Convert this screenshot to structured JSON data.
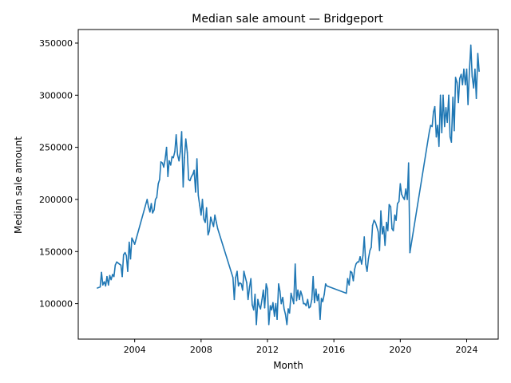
{
  "chart_data": {
    "type": "line",
    "title": "Median sale amount — Bridgeport",
    "xlabel": "Month",
    "ylabel": "Median sale amount",
    "xlim": [
      2000.6,
      2025.9
    ],
    "ylim": [
      66000,
      363000
    ],
    "x_ticks": [
      {
        "value": 2004,
        "label": "2004"
      },
      {
        "value": 2008,
        "label": "2008"
      },
      {
        "value": 2012,
        "label": "2012"
      },
      {
        "value": 2016,
        "label": "2016"
      },
      {
        "value": 2020,
        "label": "2020"
      },
      {
        "value": 2024,
        "label": "2024"
      }
    ],
    "y_ticks": [
      {
        "value": 100000,
        "label": "100000"
      },
      {
        "value": 150000,
        "label": "150000"
      },
      {
        "value": 200000,
        "label": "200000"
      },
      {
        "value": 250000,
        "label": "250000"
      },
      {
        "value": 300000,
        "label": "300000"
      },
      {
        "value": 350000,
        "label": "350000"
      }
    ],
    "grid": false,
    "series": [
      {
        "color": "#1f77b4",
        "points": [
          [
            2001.75,
            115000
          ],
          [
            2001.92,
            116000
          ],
          [
            2002.0,
            130000
          ],
          [
            2002.08,
            118000
          ],
          [
            2002.17,
            121000
          ],
          [
            2002.25,
            117000
          ],
          [
            2002.33,
            126000
          ],
          [
            2002.42,
            118000
          ],
          [
            2002.5,
            127000
          ],
          [
            2002.58,
            123000
          ],
          [
            2002.67,
            128000
          ],
          [
            2002.75,
            126000
          ],
          [
            2002.83,
            137000
          ],
          [
            2002.92,
            140000
          ],
          [
            2003.0,
            139000
          ],
          [
            2003.08,
            138000
          ],
          [
            2003.17,
            137000
          ],
          [
            2003.25,
            126000
          ],
          [
            2003.33,
            147000
          ],
          [
            2003.42,
            149000
          ],
          [
            2003.5,
            146000
          ],
          [
            2003.58,
            131000
          ],
          [
            2003.67,
            159000
          ],
          [
            2003.75,
            143000
          ],
          [
            2003.83,
            163000
          ],
          [
            2003.92,
            160000
          ],
          [
            2004.0,
            157000
          ],
          [
            2004.75,
            200000
          ],
          [
            2004.83,
            193000
          ],
          [
            2004.92,
            188000
          ],
          [
            2005.0,
            196000
          ],
          [
            2005.08,
            187000
          ],
          [
            2005.17,
            190000
          ],
          [
            2005.25,
            200000
          ],
          [
            2005.33,
            202000
          ],
          [
            2005.42,
            215000
          ],
          [
            2005.5,
            219000
          ],
          [
            2005.58,
            236000
          ],
          [
            2005.67,
            235000
          ],
          [
            2005.75,
            231000
          ],
          [
            2005.83,
            238000
          ],
          [
            2005.92,
            250000
          ],
          [
            2006.0,
            222000
          ],
          [
            2006.08,
            237000
          ],
          [
            2006.17,
            233000
          ],
          [
            2006.25,
            241000
          ],
          [
            2006.33,
            240000
          ],
          [
            2006.42,
            246000
          ],
          [
            2006.5,
            262000
          ],
          [
            2006.58,
            243000
          ],
          [
            2006.67,
            237000
          ],
          [
            2006.75,
            246000
          ],
          [
            2006.83,
            265000
          ],
          [
            2006.92,
            212000
          ],
          [
            2007.0,
            240000
          ],
          [
            2007.08,
            258000
          ],
          [
            2007.17,
            245000
          ],
          [
            2007.25,
            219000
          ],
          [
            2007.33,
            218000
          ],
          [
            2007.42,
            222000
          ],
          [
            2007.5,
            224000
          ],
          [
            2007.58,
            228000
          ],
          [
            2007.67,
            207000
          ],
          [
            2007.75,
            239000
          ],
          [
            2007.83,
            204000
          ],
          [
            2007.92,
            194000
          ],
          [
            2008.0,
            185000
          ],
          [
            2008.08,
            200000
          ],
          [
            2008.17,
            181000
          ],
          [
            2008.25,
            178000
          ],
          [
            2008.33,
            192000
          ],
          [
            2008.42,
            166000
          ],
          [
            2008.5,
            170000
          ],
          [
            2008.58,
            183000
          ],
          [
            2008.67,
            178000
          ],
          [
            2008.75,
            174000
          ],
          [
            2008.83,
            185000
          ],
          [
            2008.92,
            178000
          ],
          [
            2009.0,
            172000
          ],
          [
            2009.92,
            125000
          ],
          [
            2010.0,
            104000
          ],
          [
            2010.08,
            125000
          ],
          [
            2010.17,
            131000
          ],
          [
            2010.25,
            117000
          ],
          [
            2010.33,
            120000
          ],
          [
            2010.42,
            119000
          ],
          [
            2010.5,
            113000
          ],
          [
            2010.58,
            131000
          ],
          [
            2010.67,
            125000
          ],
          [
            2010.75,
            120000
          ],
          [
            2010.83,
            104000
          ],
          [
            2010.92,
            116000
          ],
          [
            2011.0,
            124000
          ],
          [
            2011.08,
            99000
          ],
          [
            2011.17,
            94000
          ],
          [
            2011.25,
            109000
          ],
          [
            2011.33,
            80000
          ],
          [
            2011.42,
            104000
          ],
          [
            2011.5,
            98000
          ],
          [
            2011.58,
            95000
          ],
          [
            2011.67,
            104000
          ],
          [
            2011.75,
            113000
          ],
          [
            2011.83,
            96000
          ],
          [
            2011.92,
            119000
          ],
          [
            2012.0,
            114000
          ],
          [
            2012.08,
            80000
          ],
          [
            2012.17,
            98000
          ],
          [
            2012.25,
            94000
          ],
          [
            2012.33,
            101000
          ],
          [
            2012.42,
            88000
          ],
          [
            2012.5,
            100000
          ],
          [
            2012.58,
            85000
          ],
          [
            2012.67,
            119000
          ],
          [
            2012.75,
            112000
          ],
          [
            2012.83,
            100000
          ],
          [
            2012.92,
            106000
          ],
          [
            2013.0,
            95000
          ],
          [
            2013.08,
            90000
          ],
          [
            2013.17,
            80000
          ],
          [
            2013.25,
            95000
          ],
          [
            2013.33,
            91000
          ],
          [
            2013.42,
            110000
          ],
          [
            2013.5,
            105000
          ],
          [
            2013.58,
            100000
          ],
          [
            2013.67,
            138000
          ],
          [
            2013.75,
            103000
          ],
          [
            2013.83,
            113000
          ],
          [
            2013.92,
            104000
          ],
          [
            2014.0,
            112000
          ],
          [
            2014.08,
            108000
          ],
          [
            2014.17,
            100000
          ],
          [
            2014.25,
            100000
          ],
          [
            2014.33,
            98000
          ],
          [
            2014.42,
            104000
          ],
          [
            2014.5,
            96000
          ],
          [
            2014.58,
            97000
          ],
          [
            2014.67,
            104000
          ],
          [
            2014.75,
            126000
          ],
          [
            2014.83,
            101000
          ],
          [
            2014.92,
            114000
          ],
          [
            2015.0,
            103000
          ],
          [
            2015.08,
            109000
          ],
          [
            2015.17,
            85000
          ],
          [
            2015.25,
            105000
          ],
          [
            2015.33,
            102000
          ],
          [
            2015.42,
            109000
          ],
          [
            2015.5,
            119000
          ],
          [
            2015.58,
            117000
          ],
          [
            2016.75,
            110000
          ],
          [
            2016.83,
            124000
          ],
          [
            2016.92,
            118000
          ],
          [
            2017.0,
            131000
          ],
          [
            2017.08,
            130000
          ],
          [
            2017.17,
            122000
          ],
          [
            2017.25,
            133000
          ],
          [
            2017.33,
            138000
          ],
          [
            2017.42,
            140000
          ],
          [
            2017.5,
            140000
          ],
          [
            2017.58,
            145000
          ],
          [
            2017.67,
            138000
          ],
          [
            2017.75,
            146000
          ],
          [
            2017.83,
            164000
          ],
          [
            2017.92,
            138000
          ],
          [
            2018.0,
            131000
          ],
          [
            2018.08,
            143000
          ],
          [
            2018.17,
            151000
          ],
          [
            2018.25,
            154000
          ],
          [
            2018.33,
            175000
          ],
          [
            2018.42,
            180000
          ],
          [
            2018.5,
            178000
          ],
          [
            2018.58,
            174000
          ],
          [
            2018.67,
            169000
          ],
          [
            2018.75,
            151000
          ],
          [
            2018.83,
            189000
          ],
          [
            2018.92,
            167000
          ],
          [
            2019.0,
            174000
          ],
          [
            2019.08,
            156000
          ],
          [
            2019.17,
            178000
          ],
          [
            2019.25,
            170000
          ],
          [
            2019.33,
            195000
          ],
          [
            2019.42,
            193000
          ],
          [
            2019.5,
            172000
          ],
          [
            2019.58,
            170000
          ],
          [
            2019.67,
            185000
          ],
          [
            2019.75,
            180000
          ],
          [
            2019.83,
            196000
          ],
          [
            2019.92,
            198000
          ],
          [
            2020.0,
            215000
          ],
          [
            2020.08,
            205000
          ],
          [
            2020.17,
            202000
          ],
          [
            2020.25,
            200000
          ],
          [
            2020.33,
            210000
          ],
          [
            2020.42,
            200000
          ],
          [
            2020.5,
            235000
          ],
          [
            2020.58,
            149000
          ],
          [
            2021.75,
            265000
          ],
          [
            2021.83,
            271000
          ],
          [
            2021.92,
            270000
          ],
          [
            2022.0,
            284000
          ],
          [
            2022.08,
            289000
          ],
          [
            2022.17,
            260000
          ],
          [
            2022.25,
            271000
          ],
          [
            2022.33,
            251000
          ],
          [
            2022.42,
            300000
          ],
          [
            2022.5,
            264000
          ],
          [
            2022.58,
            300000
          ],
          [
            2022.67,
            270000
          ],
          [
            2022.75,
            288000
          ],
          [
            2022.83,
            274000
          ],
          [
            2022.92,
            300000
          ],
          [
            2023.0,
            260000
          ],
          [
            2023.08,
            255000
          ],
          [
            2023.17,
            298000
          ],
          [
            2023.25,
            266000
          ],
          [
            2023.33,
            317000
          ],
          [
            2023.42,
            312000
          ],
          [
            2023.5,
            293000
          ],
          [
            2023.58,
            316000
          ],
          [
            2023.67,
            320000
          ],
          [
            2023.75,
            310000
          ],
          [
            2023.83,
            325000
          ],
          [
            2023.92,
            310000
          ],
          [
            2024.0,
            325000
          ],
          [
            2024.08,
            291000
          ],
          [
            2024.17,
            325000
          ],
          [
            2024.25,
            348000
          ],
          [
            2024.33,
            318000
          ],
          [
            2024.42,
            307000
          ],
          [
            2024.5,
            325000
          ],
          [
            2024.58,
            297000
          ],
          [
            2024.67,
            340000
          ],
          [
            2024.75,
            323000
          ]
        ]
      }
    ]
  }
}
